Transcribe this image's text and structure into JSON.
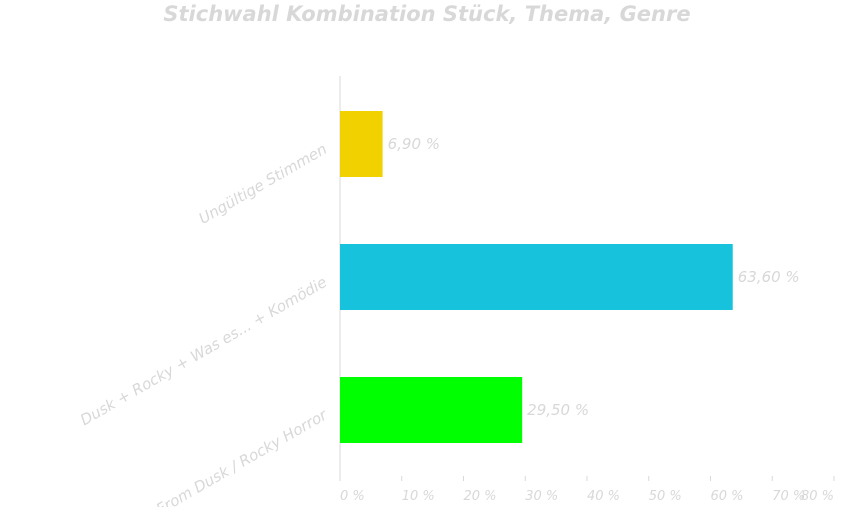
{
  "chart_data": {
    "type": "bar",
    "orientation": "horizontal",
    "title": "Stichwahl Kombination Stück, Thema, Genre",
    "categories": [
      "From Dusk / Rocky Horror",
      "Dusk + Rocky + Was es... + Komödie",
      "Ungültige Stimmen"
    ],
    "values": [
      29.5,
      63.6,
      6.9
    ],
    "data_labels": [
      "29,50 %",
      "63,60 %",
      "6,90 %"
    ],
    "colors": [
      "#00ff00",
      "#17c3dc",
      "#f2d100"
    ],
    "xlim": [
      0,
      80
    ],
    "x_ticks": [
      0,
      10,
      20,
      30,
      40,
      50,
      60,
      70,
      80
    ],
    "x_tick_labels": [
      "0 %",
      "10 %",
      "20 %",
      "30 %",
      "40 %",
      "50 %",
      "60 %",
      "70 %",
      "80 %"
    ],
    "grid": false,
    "legend": "none"
  }
}
